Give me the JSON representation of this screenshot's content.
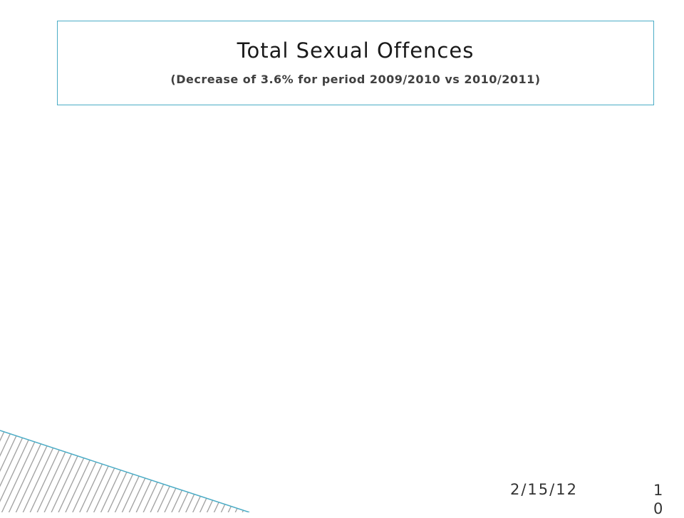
{
  "header": {
    "title": "Total Sexual Offences",
    "subtitle": "(Decrease of 3.6% for period 2009/2010 vs 2010/2011)"
  },
  "footer": {
    "date": "2/15/12",
    "slide_number": "10"
  }
}
